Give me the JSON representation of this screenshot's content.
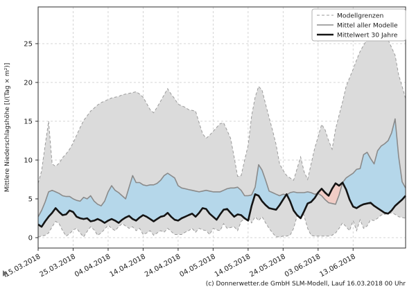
{
  "footer": {
    "credit": "(c) Donnerwetter.de GmbH SLM-Modell, Lauf 16.03.2018 00 Uhr"
  },
  "chart_data": {
    "type": "area",
    "title": "",
    "xlabel": "",
    "ylabel": "Mittlere Niederschlagshöhe [l/(Tag × m²)]",
    "ylabel_unit_fraction": {
      "numerator": "l",
      "denominator": "Tag × m²"
    },
    "ylim": [
      -1.34,
      29.7
    ],
    "yticks": [
      0,
      5,
      10,
      15,
      20,
      25
    ],
    "x_start_date": "15.03.2018",
    "x_days_total": 105,
    "xtick_days": [
      0,
      10,
      20,
      30,
      40,
      50,
      60,
      70,
      80,
      90
    ],
    "xtick_labels": [
      "15.03.2018",
      "25.03.2018",
      "04.04.2018",
      "14.04.2018",
      "24.04.2018",
      "04.05.2018",
      "14.05.2018",
      "24.05.2018",
      "03.06.2018",
      "13.06.2018"
    ],
    "grid": true,
    "legend": {
      "position": "top-right",
      "entries": [
        {
          "label": "Modellgrenzen",
          "style": "dashed",
          "color": "#999999"
        },
        {
          "label": "Mittel aller Modelle",
          "style": "solid",
          "color": "#8a8a8a"
        },
        {
          "label": "Mittelwert 30 Jahre",
          "style": "solid-thick",
          "color": "#141414"
        }
      ]
    },
    "colors": {
      "band_fill": "#dbdbdb",
      "band_edge": "#9a9a9a",
      "above_normal_fill": "#b5d7ea",
      "below_normal_fill": "#f1cdc6",
      "mean_line": "#8a8a8a",
      "climate_line": "#141414",
      "grid": "#c9c9c9",
      "axis": "#2b2b2b",
      "text": "#1a1a1a"
    },
    "series": [
      {
        "name": "Modellgrenzen (Maximum)",
        "role": "band_upper",
        "values": [
          7.0,
          8.6,
          11.9,
          15.0,
          9.5,
          9.2,
          9.6,
          10.3,
          10.8,
          11.4,
          12.2,
          13.2,
          14.2,
          15.1,
          15.7,
          16.3,
          16.7,
          17.1,
          17.4,
          17.6,
          17.8,
          18.0,
          18.1,
          18.2,
          18.4,
          18.5,
          18.6,
          18.7,
          18.8,
          18.5,
          18.1,
          17.3,
          16.5,
          16.1,
          16.8,
          17.6,
          18.4,
          19.2,
          18.5,
          17.9,
          17.2,
          17.0,
          16.8,
          16.5,
          16.4,
          16.3,
          14.8,
          13.4,
          12.8,
          13.2,
          13.7,
          14.2,
          14.7,
          14.8,
          13.8,
          12.8,
          10.4,
          7.9,
          8.0,
          10.0,
          11.9,
          15.7,
          18.1,
          19.5,
          19.0,
          17.2,
          15.5,
          13.8,
          12.0,
          9.5,
          8.7,
          8.0,
          7.7,
          7.4,
          8.9,
          10.4,
          8.5,
          7.5,
          9.5,
          11.5,
          13.0,
          14.6,
          13.9,
          12.5,
          11.4,
          14.0,
          15.8,
          17.5,
          19.5,
          20.6,
          21.7,
          22.9,
          24.0,
          24.8,
          25.5,
          26.0,
          26.4,
          26.6,
          26.8,
          26.9,
          25.5,
          24.5,
          23.5,
          21.0,
          19.5,
          17.9
        ]
      },
      {
        "name": "Modellgrenzen (Minimum)",
        "role": "band_lower",
        "values": [
          0.1,
          0.2,
          0.3,
          0.6,
          1.4,
          2.1,
          1.8,
          0.9,
          0.2,
          0.5,
          1.0,
          1.2,
          0.6,
          0.1,
          0.8,
          1.4,
          1.0,
          0.3,
          0.6,
          1.1,
          1.6,
          1.2,
          0.9,
          1.4,
          1.8,
          1.5,
          1.2,
          1.4,
          0.9,
          1.2,
          0.4,
          0.6,
          0.9,
          0.3,
          0.6,
          0.9,
          0.7,
          1.2,
          0.8,
          0.4,
          0.4,
          0.4,
          0.7,
          0.9,
          1.2,
          0.7,
          1.2,
          1.0,
          0.9,
          0.4,
          1.2,
          1.0,
          0.9,
          1.8,
          1.2,
          1.3,
          1.4,
          0.9,
          2.1,
          2.4,
          2.7,
          1.9,
          2.7,
          2.2,
          2.7,
          1.9,
          1.2,
          0.6,
          0.1,
          0.1,
          0.2,
          0.2,
          0.3,
          1.2,
          2.8,
          4.1,
          2.8,
          1.2,
          0.3,
          0.2,
          0.2,
          0.2,
          0.2,
          0.2,
          0.3,
          0.6,
          1.2,
          1.9,
          1.4,
          0.9,
          2.2,
          0.9,
          2.3,
          1.2,
          1.5,
          2.3,
          2.2,
          2.5,
          2.9,
          3.0,
          3.1,
          3.2,
          3.0,
          2.7,
          2.6,
          2.5
        ]
      },
      {
        "name": "Mittel aller Modelle",
        "role": "model_mean",
        "values": [
          2.7,
          3.5,
          4.6,
          5.9,
          6.1,
          5.9,
          5.7,
          5.4,
          5.3,
          5.3,
          5.0,
          4.8,
          4.7,
          5.2,
          5.0,
          5.4,
          4.7,
          4.3,
          4.1,
          4.7,
          5.9,
          6.7,
          6.1,
          5.8,
          5.4,
          5.0,
          6.5,
          8.0,
          7.1,
          7.1,
          6.8,
          6.7,
          6.8,
          6.8,
          7.0,
          7.4,
          8.0,
          8.3,
          8.0,
          7.7,
          6.7,
          6.4,
          6.3,
          6.2,
          6.1,
          6.0,
          5.9,
          6.0,
          6.1,
          6.0,
          5.9,
          5.9,
          5.9,
          6.1,
          6.3,
          6.4,
          6.4,
          6.5,
          6.1,
          5.4,
          5.4,
          5.5,
          6.5,
          9.4,
          8.7,
          7.4,
          6.0,
          5.8,
          5.6,
          5.4,
          5.6,
          5.5,
          5.8,
          5.9,
          5.8,
          5.8,
          5.8,
          5.9,
          5.8,
          5.6,
          5.7,
          5.4,
          4.9,
          4.5,
          4.4,
          4.3,
          5.5,
          7.1,
          7.7,
          8.0,
          8.3,
          8.8,
          8.9,
          10.7,
          11.0,
          10.2,
          9.5,
          11.2,
          11.8,
          12.1,
          12.5,
          13.5,
          15.3,
          10.5,
          7.2,
          6.4
        ]
      },
      {
        "name": "Mittelwert 30 Jahre",
        "role": "climate_mean",
        "values": [
          1.7,
          1.4,
          2.1,
          2.7,
          3.2,
          3.8,
          3.3,
          2.9,
          3.0,
          3.5,
          3.3,
          2.7,
          2.5,
          2.4,
          2.5,
          2.1,
          2.2,
          2.4,
          2.2,
          1.9,
          2.2,
          2.4,
          2.2,
          1.9,
          2.3,
          2.6,
          2.8,
          2.4,
          2.2,
          2.6,
          2.9,
          2.7,
          2.4,
          2.1,
          2.4,
          2.7,
          2.8,
          3.2,
          2.7,
          2.3,
          2.2,
          2.5,
          2.7,
          2.9,
          3.1,
          2.7,
          3.2,
          3.8,
          3.7,
          3.1,
          2.7,
          2.3,
          3.0,
          3.6,
          3.7,
          3.2,
          2.7,
          3.0,
          2.9,
          2.5,
          2.2,
          4.1,
          5.6,
          5.4,
          4.7,
          4.2,
          3.8,
          3.7,
          3.6,
          4.2,
          4.9,
          5.6,
          4.7,
          3.5,
          2.9,
          2.5,
          3.4,
          4.4,
          4.6,
          5.1,
          5.8,
          6.3,
          5.8,
          5.4,
          6.3,
          7.0,
          6.7,
          7.1,
          6.2,
          4.9,
          4.0,
          3.8,
          4.1,
          4.3,
          4.4,
          4.5,
          4.1,
          3.8,
          3.5,
          3.2,
          3.1,
          3.5,
          4.1,
          4.5,
          4.9,
          5.4
        ]
      }
    ]
  }
}
